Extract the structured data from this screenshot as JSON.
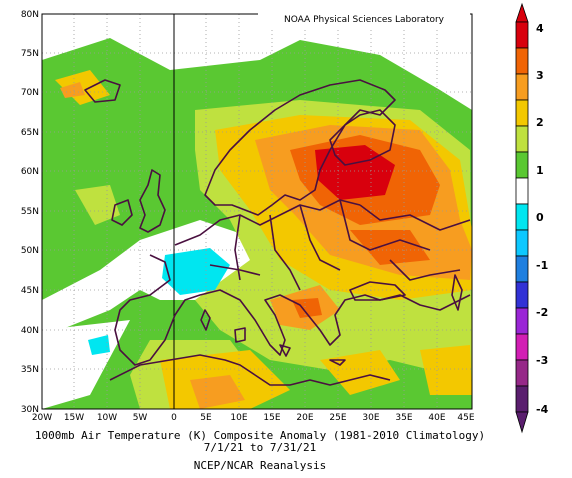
{
  "credit": "NOAA Physical Sciences Laboratory",
  "caption": {
    "line1": "1000mb Air Temperature (K) Composite Anomaly (1981-2010 Climatology)",
    "line2": "7/1/21  to 7/31/21",
    "line3": "NCEP/NCAR Reanalysis"
  },
  "map": {
    "lon_labels": [
      "20W",
      "15W",
      "10W",
      "5W",
      "0",
      "5E",
      "10E",
      "15E",
      "20E",
      "25E",
      "30E",
      "35E",
      "40E",
      "45E"
    ],
    "lat_labels": [
      "80N",
      "75N",
      "70N",
      "65N",
      "60N",
      "55N",
      "50N",
      "45N",
      "40N",
      "35N",
      "30N"
    ],
    "lon_range": [
      -20,
      45
    ],
    "lat_range": [
      30,
      80
    ],
    "grid_dotted": true,
    "meridian_line": "0"
  },
  "colorbar": {
    "labels": [
      "4",
      "3",
      "2",
      "1",
      "0",
      "-1",
      "-2",
      "-3",
      "-4"
    ],
    "colors": [
      "#d8000d",
      "#f06405",
      "#f79d20",
      "#f3c800",
      "#bfe13f",
      "#5ac832",
      "#ffffff",
      "#00e6f0",
      "#0dc8ff",
      "#1f7fe0",
      "#3232d6",
      "#9a26d6",
      "#d21eb4",
      "#962888",
      "#5a1e6e"
    ],
    "units": "K"
  }
}
